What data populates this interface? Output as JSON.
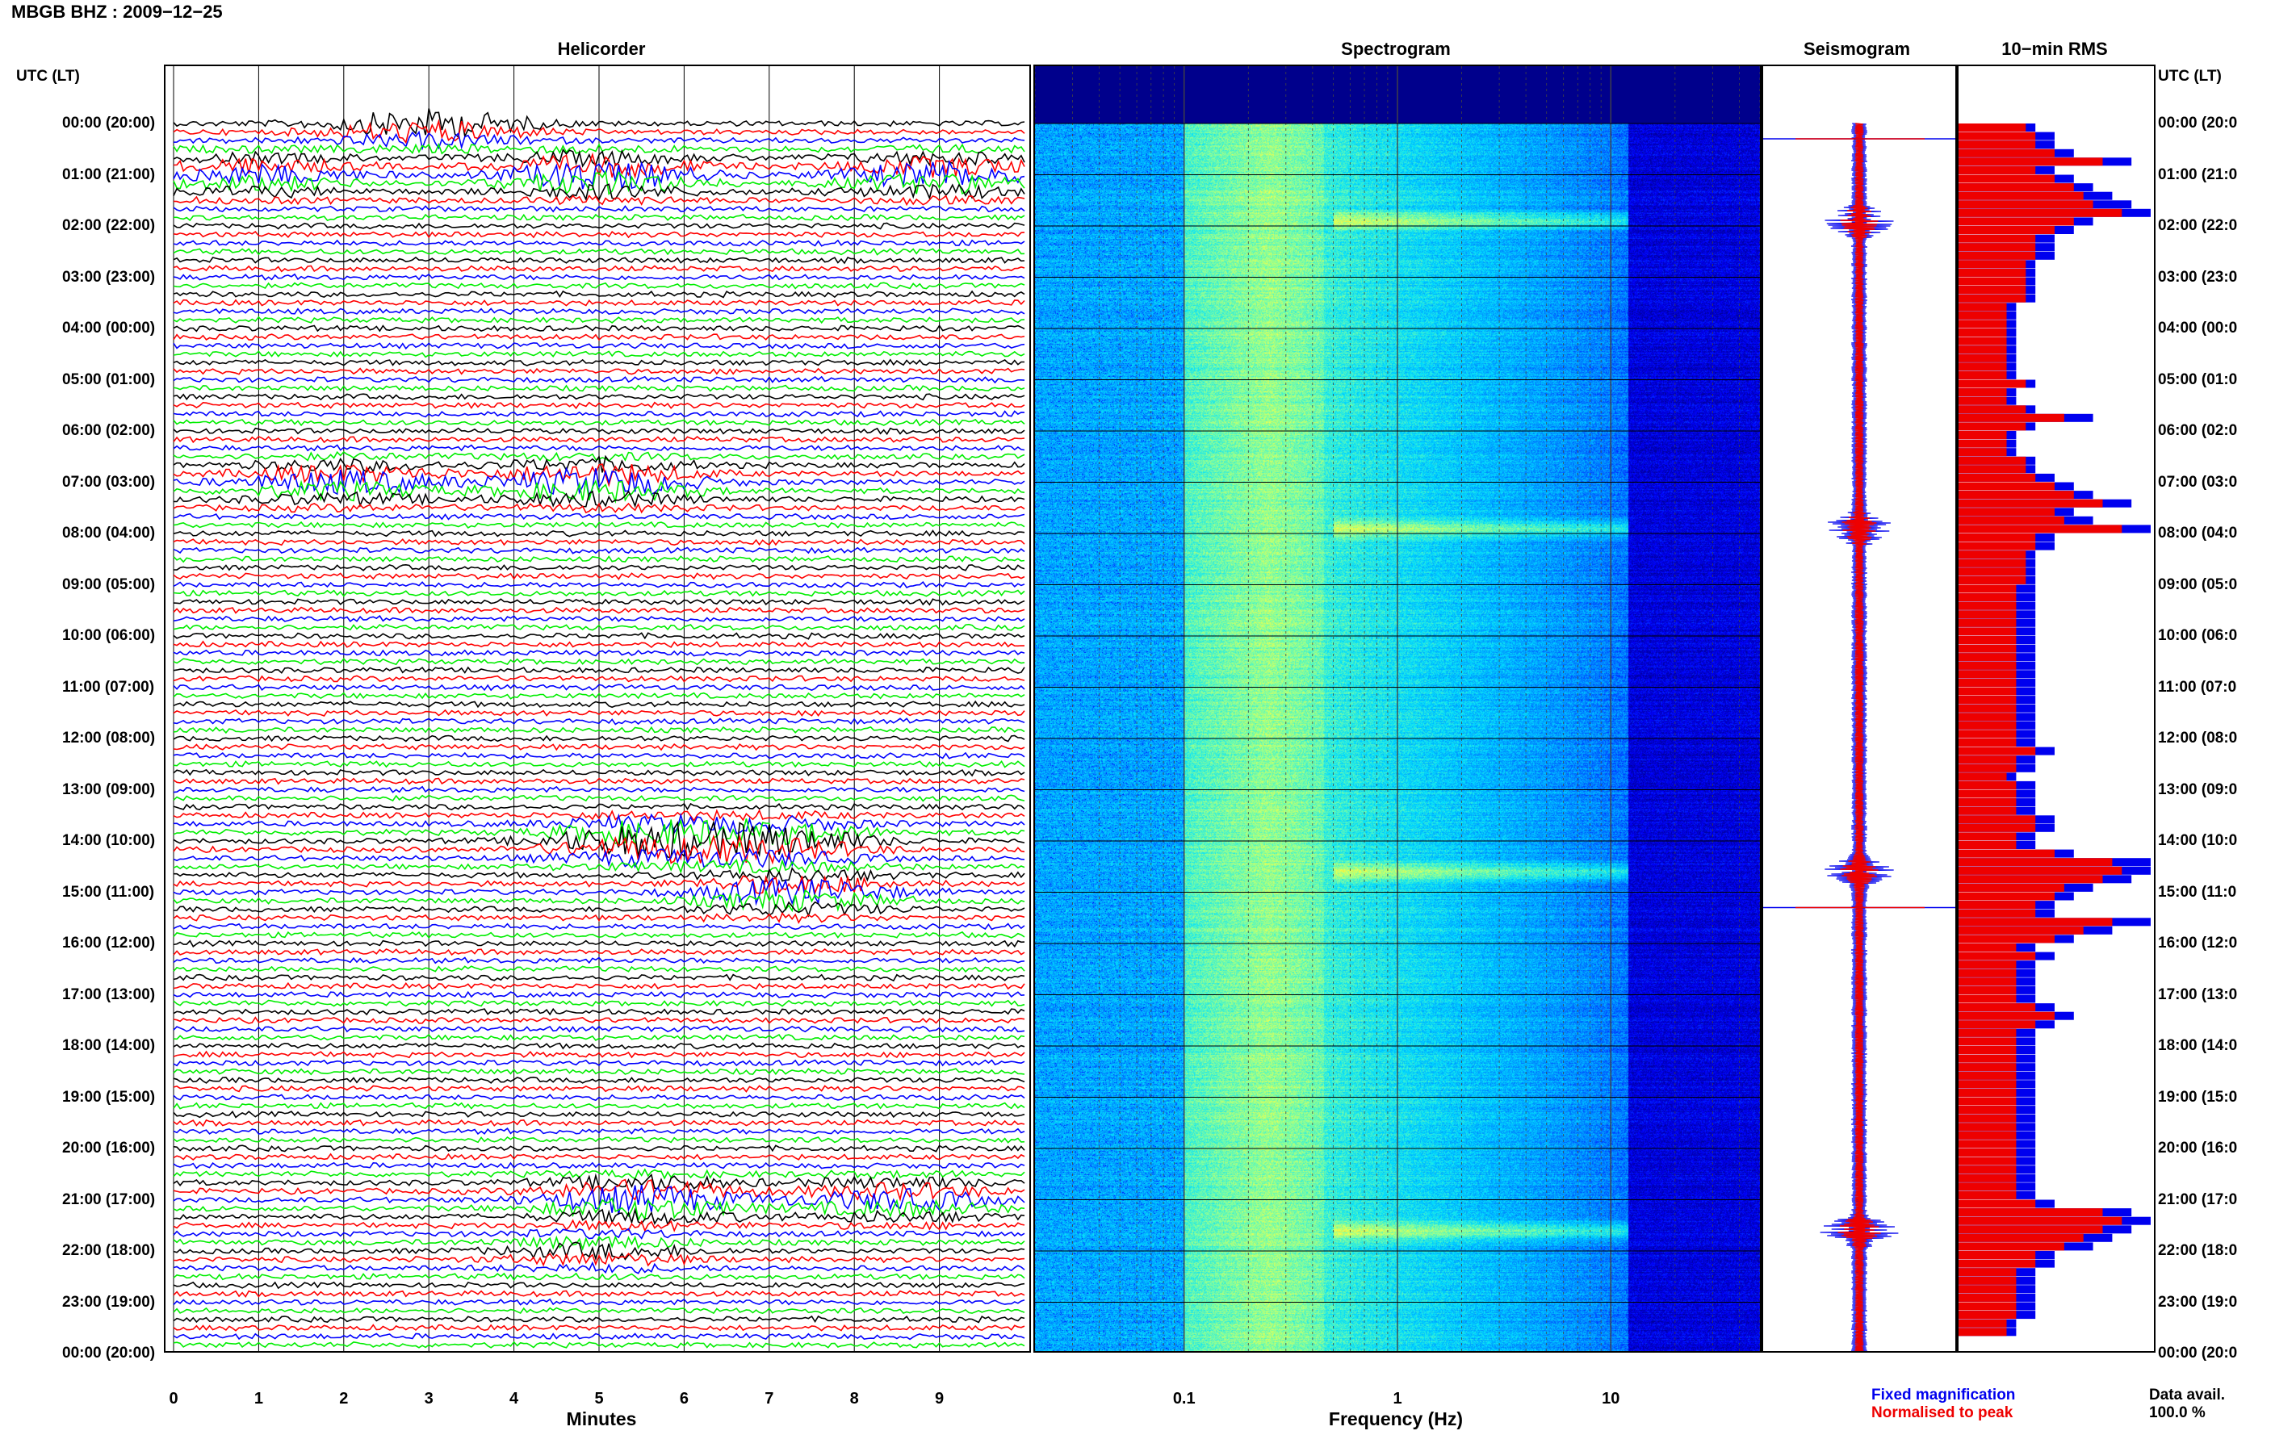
{
  "page": {
    "title": "MBGB BHZ : 2009−12−25",
    "utc_label": "UTC (LT)",
    "panels": {
      "helicorder": "Helicorder",
      "spectrogram": "Spectrogram",
      "seismogram": "Seismogram",
      "rms": "10−min RMS"
    },
    "data_avail_label": "Data avail.",
    "data_avail_value": "100.0 %",
    "legend": {
      "fixed": "Fixed magnification",
      "normalised": "Normalised to peak"
    },
    "colors": {
      "trace_black": "#000000",
      "trace_red": "#ff0000",
      "trace_blue": "#0000ff",
      "trace_green": "#00ee00",
      "fixed_blue": "#0000ee",
      "normalised_red": "#ee0000"
    }
  },
  "time_labels_left": [
    "00:00 (20:00)",
    "01:00 (21:00)",
    "02:00 (22:00)",
    "03:00 (23:00)",
    "04:00 (00:00)",
    "05:00 (01:00)",
    "06:00 (02:00)",
    "07:00 (03:00)",
    "08:00 (04:00)",
    "09:00 (05:00)",
    "10:00 (06:00)",
    "11:00 (07:00)",
    "12:00 (08:00)",
    "13:00 (09:00)",
    "14:00 (10:00)",
    "15:00 (11:00)",
    "16:00 (12:00)",
    "17:00 (13:00)",
    "18:00 (14:00)",
    "19:00 (15:00)",
    "20:00 (16:00)",
    "21:00 (17:00)",
    "22:00 (18:00)",
    "23:00 (19:00)",
    "00:00 (20:00)"
  ],
  "time_labels_right": [
    "00:00 (20:0",
    "01:00 (21:0",
    "02:00 (22:0",
    "03:00 (23:0",
    "04:00 (00:0",
    "05:00 (01:0",
    "06:00 (02:0",
    "07:00 (03:0",
    "08:00 (04:0",
    "09:00 (05:0",
    "10:00 (06:0",
    "11:00 (07:0",
    "12:00 (08:0",
    "13:00 (09:0",
    "14:00 (10:0",
    "15:00 (11:0",
    "16:00 (12:0",
    "17:00 (13:0",
    "18:00 (14:0",
    "19:00 (15:0",
    "20:00 (16:0",
    "21:00 (17:0",
    "22:00 (18:0",
    "23:00 (19:0",
    "00:00 (20:0"
  ],
  "chart_data": [
    {
      "type": "line",
      "name": "helicorder",
      "title": "Helicorder",
      "xlabel": "Minutes",
      "xticks": [
        "0",
        "1",
        "2",
        "3",
        "4",
        "5",
        "6",
        "7",
        "8",
        "9"
      ],
      "xlim": [
        0,
        10
      ],
      "lines_per_hour": 6,
      "trace_color_cycle": [
        "black",
        "red",
        "blue",
        "green"
      ],
      "events": [
        {
          "hour": 0,
          "minute": 3.0,
          "amp": 1.0
        },
        {
          "hour": 1,
          "minute": 1.0,
          "amp": 0.6
        },
        {
          "hour": 1,
          "minute": 9.0,
          "amp": 0.9
        },
        {
          "hour": 1,
          "minute": 5.0,
          "amp": 1.0
        },
        {
          "hour": 7,
          "minute": 5.0,
          "amp": 1.0
        },
        {
          "hour": 7,
          "minute": 2.0,
          "amp": 0.8
        },
        {
          "hour": 14,
          "minute": 5.5,
          "amp": 1.0
        },
        {
          "hour": 14,
          "minute": 7.0,
          "amp": 1.0
        },
        {
          "hour": 15,
          "minute": 7.3,
          "amp": 0.9
        },
        {
          "hour": 21,
          "minute": 5.5,
          "amp": 1.0
        },
        {
          "hour": 21,
          "minute": 8.5,
          "amp": 0.7
        },
        {
          "hour": 22,
          "minute": 5.0,
          "amp": 0.5
        }
      ]
    },
    {
      "type": "heatmap",
      "name": "spectrogram",
      "title": "Spectrogram",
      "xlabel": "Frequency (Hz)",
      "xscale": "log",
      "xticks": [
        "0.1",
        "1",
        "10"
      ],
      "xlim": [
        0.02,
        50
      ],
      "colormap": [
        "#00008c",
        "#0000ff",
        "#0080ff",
        "#00e0ff",
        "#80ffa0",
        "#ffff40",
        "#ff8000"
      ],
      "high_energy_hours": [
        1.9,
        7.9,
        14.6,
        21.6
      ]
    },
    {
      "type": "line",
      "name": "seismogram",
      "title": "Seismogram",
      "series": [
        {
          "name": "Fixed magnification",
          "color": "#0000ee"
        },
        {
          "name": "Normalised to peak",
          "color": "#ee0000"
        }
      ]
    },
    {
      "type": "bar",
      "name": "rms",
      "title": "10−min RMS",
      "categories_per_hour": 6,
      "series": [
        {
          "name": "Fixed magnification",
          "color": "#0000ee",
          "values": [
            0.4,
            0.5,
            0.5,
            0.6,
            0.9,
            0.5,
            0.6,
            0.7,
            0.8,
            0.9,
            1.0,
            0.7,
            0.6,
            0.5,
            0.5,
            0.5,
            0.4,
            0.4,
            0.4,
            0.4,
            0.4,
            0.3,
            0.3,
            0.3,
            0.3,
            0.3,
            0.3,
            0.3,
            0.3,
            0.3,
            0.4,
            0.3,
            0.3,
            0.4,
            0.7,
            0.4,
            0.3,
            0.3,
            0.3,
            0.4,
            0.4,
            0.5,
            0.6,
            0.7,
            0.9,
            0.6,
            0.7,
            1.0,
            0.5,
            0.5,
            0.4,
            0.4,
            0.4,
            0.4,
            0.4,
            0.4,
            0.4,
            0.4,
            0.4,
            0.4,
            0.4,
            0.4,
            0.4,
            0.4,
            0.4,
            0.4,
            0.4,
            0.4,
            0.4,
            0.4,
            0.4,
            0.4,
            0.4,
            0.5,
            0.4,
            0.4,
            0.3,
            0.4,
            0.4,
            0.4,
            0.4,
            0.5,
            0.5,
            0.4,
            0.4,
            0.6,
            1.0,
            1.0,
            0.9,
            0.7,
            0.6,
            0.5,
            0.5,
            1.0,
            0.8,
            0.6,
            0.4,
            0.5,
            0.4,
            0.4,
            0.4,
            0.4,
            0.4,
            0.5,
            0.6,
            0.5,
            0.4,
            0.4,
            0.4,
            0.4,
            0.4,
            0.4,
            0.4,
            0.4,
            0.4,
            0.4,
            0.4,
            0.4,
            0.4,
            0.4,
            0.4,
            0.4,
            0.4,
            0.4,
            0.4,
            0.4,
            0.5,
            0.9,
            1.0,
            0.9,
            0.8,
            0.7,
            0.5,
            0.5,
            0.4,
            0.4,
            0.4,
            0.4,
            0.4,
            0.4,
            0.3,
            0.3
          ]
        },
        {
          "name": "Normalised to peak",
          "color": "#ee0000",
          "values": [
            0.35,
            0.4,
            0.4,
            0.5,
            0.75,
            0.4,
            0.5,
            0.6,
            0.65,
            0.7,
            0.85,
            0.6,
            0.5,
            0.4,
            0.4,
            0.4,
            0.35,
            0.35,
            0.35,
            0.35,
            0.35,
            0.25,
            0.25,
            0.25,
            0.25,
            0.25,
            0.25,
            0.25,
            0.25,
            0.25,
            0.35,
            0.25,
            0.25,
            0.35,
            0.55,
            0.35,
            0.25,
            0.25,
            0.25,
            0.35,
            0.35,
            0.4,
            0.5,
            0.6,
            0.75,
            0.5,
            0.55,
            0.85,
            0.4,
            0.4,
            0.35,
            0.35,
            0.35,
            0.35,
            0.3,
            0.3,
            0.3,
            0.3,
            0.3,
            0.3,
            0.3,
            0.3,
            0.3,
            0.3,
            0.3,
            0.3,
            0.3,
            0.3,
            0.3,
            0.3,
            0.3,
            0.3,
            0.3,
            0.4,
            0.3,
            0.3,
            0.25,
            0.3,
            0.3,
            0.3,
            0.3,
            0.4,
            0.4,
            0.3,
            0.3,
            0.5,
            0.8,
            0.85,
            0.75,
            0.55,
            0.5,
            0.4,
            0.4,
            0.8,
            0.65,
            0.5,
            0.3,
            0.4,
            0.3,
            0.3,
            0.3,
            0.3,
            0.3,
            0.4,
            0.5,
            0.4,
            0.3,
            0.3,
            0.3,
            0.3,
            0.3,
            0.3,
            0.3,
            0.3,
            0.3,
            0.3,
            0.3,
            0.3,
            0.3,
            0.3,
            0.3,
            0.3,
            0.3,
            0.3,
            0.3,
            0.3,
            0.4,
            0.75,
            0.85,
            0.75,
            0.65,
            0.55,
            0.4,
            0.4,
            0.3,
            0.3,
            0.3,
            0.3,
            0.3,
            0.3,
            0.25,
            0.25
          ]
        }
      ]
    }
  ]
}
